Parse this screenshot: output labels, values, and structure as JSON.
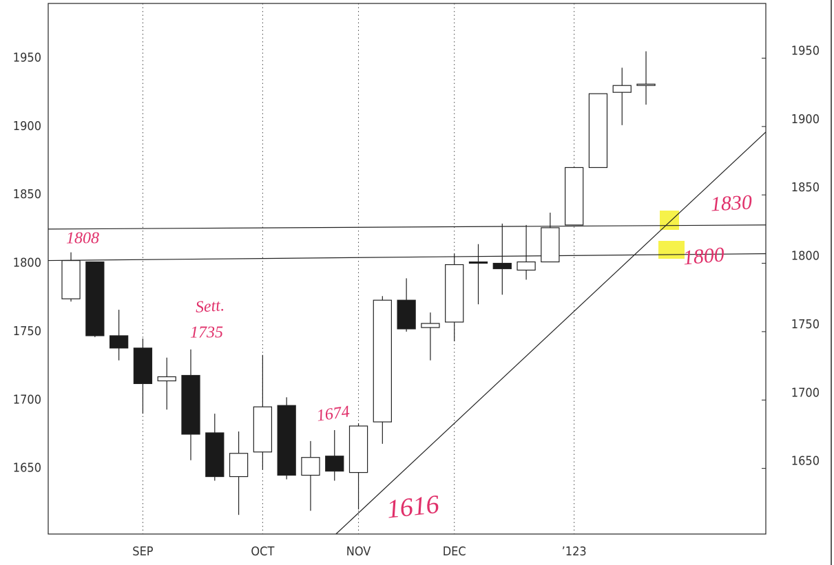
{
  "chart_data": {
    "type": "candlestick",
    "categories": [
      null,
      null,
      null,
      "SEP",
      null,
      null,
      null,
      null,
      "OCT",
      null,
      null,
      null,
      "NOV",
      null,
      null,
      null,
      "DEC",
      null,
      null,
      null,
      null,
      "’123",
      null,
      null,
      null
    ],
    "open": [
      1774,
      1801,
      1747,
      1738,
      1714,
      1718,
      1676,
      1644,
      1662,
      1696,
      1645,
      1659,
      1647,
      1684,
      1773,
      1753,
      1757,
      1801,
      1800,
      1795,
      1801,
      1828,
      1870,
      1925,
      1930
    ],
    "high": [
      1808,
      1801,
      1766,
      1745,
      1731,
      1737,
      1690,
      1677,
      1733,
      1702,
      1670,
      1678,
      1683,
      1776,
      1789,
      1764,
      1807,
      1814,
      1829,
      1828,
      1837,
      1870,
      1924,
      1943,
      1955
    ],
    "low": [
      1772,
      1746,
      1729,
      1690,
      1693,
      1656,
      1641,
      1616,
      1649,
      1642,
      1619,
      1641,
      1620,
      1668,
      1750,
      1729,
      1743,
      1770,
      1777,
      1788,
      1801,
      1828,
      1870,
      1901,
      1916
    ],
    "close": [
      1802,
      1747,
      1738,
      1712,
      1717,
      1675,
      1644,
      1661,
      1695,
      1645,
      1658,
      1648,
      1681,
      1773,
      1752,
      1756,
      1799,
      1800,
      1796,
      1801,
      1826,
      1870,
      1924,
      1930,
      1931
    ],
    "up_color": "#ffffff",
    "down_color": "#1a1a1a",
    "xlim": [
      -0.95,
      29.0
    ],
    "ylim": [
      1602,
      1990
    ],
    "yticks": [
      1650,
      1700,
      1750,
      1800,
      1850,
      1900,
      1950
    ],
    "trendlines": [
      {
        "x": [
          -0.95,
          29.0
        ],
        "y": [
          1825,
          1828
        ]
      },
      {
        "x": [
          -0.95,
          29.0
        ],
        "y": [
          1802,
          1807
        ]
      },
      {
        "x": [
          11.06,
          29.0
        ],
        "y": [
          1602,
          1896
        ]
      }
    ],
    "annotations": [
      "1808",
      "Sett.",
      "1735",
      "1674",
      "1616",
      "1830",
      "1800"
    ],
    "annotation_color": "#e0306a"
  }
}
